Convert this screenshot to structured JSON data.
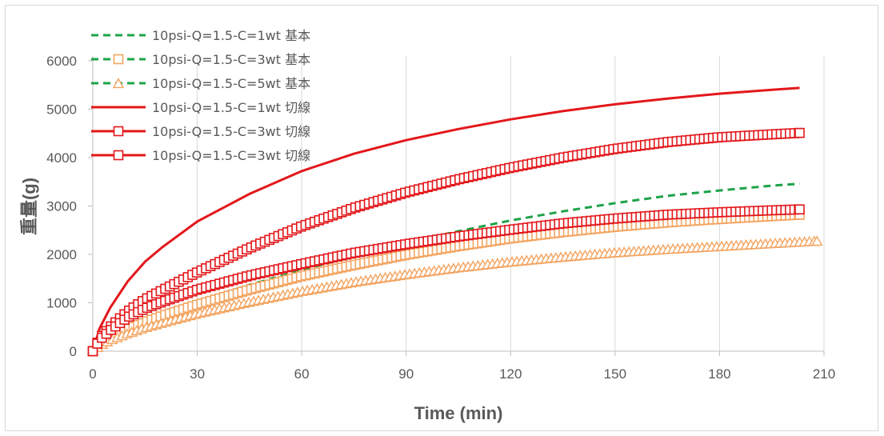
{
  "chart_data": {
    "type": "line",
    "xlabel": "Time (min)",
    "ylabel": "重量(g)",
    "xlim": [
      0,
      210
    ],
    "ylim": [
      0,
      6000
    ],
    "xticks": [
      0,
      30,
      60,
      90,
      120,
      150,
      180,
      210
    ],
    "yticks": [
      0,
      1000,
      2000,
      3000,
      4000,
      5000,
      6000
    ],
    "grid": "vertical",
    "legend_position": "top-left",
    "colors": {
      "green": "#1ea34a",
      "orange": "#f4a460",
      "red": "#e3171b",
      "axis": "#bfbfbf",
      "text": "#595959"
    },
    "series": [
      {
        "name": "10psi-Q=1.5-C=1wt 基本",
        "style": "dashed",
        "color": "#1ea34a",
        "marker": "none",
        "x": [
          0,
          2,
          5,
          10,
          15,
          20,
          30,
          45,
          60,
          75,
          90,
          105,
          120,
          135,
          150,
          165,
          180,
          195,
          203
        ],
        "y": [
          0,
          160,
          300,
          480,
          640,
          780,
          1030,
          1370,
          1680,
          1960,
          2240,
          2480,
          2700,
          2890,
          3060,
          3210,
          3320,
          3420,
          3460
        ]
      },
      {
        "name": "10psi-Q=1.5-C=3wt 基本",
        "style": "dashed",
        "color": "#1ea34a",
        "marker": "square",
        "marker_color": "#f4a460",
        "marker_every": 1,
        "x": [
          0,
          2,
          5,
          10,
          15,
          20,
          30,
          45,
          60,
          75,
          90,
          105,
          120,
          135,
          150,
          165,
          180,
          195,
          203
        ],
        "y": [
          0,
          150,
          280,
          450,
          600,
          730,
          960,
          1270,
          1550,
          1780,
          1990,
          2170,
          2330,
          2460,
          2570,
          2660,
          2730,
          2790,
          2820
        ]
      },
      {
        "name": "10psi-Q=1.5-C=5wt 基本",
        "style": "dashed",
        "color": "#1ea34a",
        "marker": "triangle",
        "marker_color": "#f4a460",
        "x": [
          0,
          2,
          5,
          10,
          15,
          20,
          30,
          45,
          60,
          75,
          90,
          105,
          120,
          135,
          150,
          165,
          180,
          195,
          208
        ],
        "y": [
          0,
          120,
          230,
          370,
          490,
          590,
          780,
          1020,
          1240,
          1430,
          1590,
          1730,
          1850,
          1950,
          2040,
          2110,
          2170,
          2230,
          2280
        ]
      },
      {
        "name": "10psi-Q=1.5-C=1wt 切線",
        "style": "solid",
        "color": "#e3171b",
        "marker": "none",
        "x": [
          0,
          2,
          5,
          10,
          15,
          20,
          30,
          45,
          60,
          75,
          90,
          105,
          120,
          135,
          150,
          165,
          180,
          195,
          203
        ],
        "y": [
          0,
          480,
          900,
          1440,
          1850,
          2150,
          2680,
          3250,
          3720,
          4080,
          4360,
          4590,
          4790,
          4960,
          5100,
          5220,
          5320,
          5400,
          5440
        ]
      },
      {
        "name": "10psi-Q=1.5-C=3wt 切線",
        "style": "solid",
        "color": "#e3171b",
        "marker": "square",
        "x": [
          0,
          2,
          5,
          10,
          15,
          20,
          30,
          45,
          60,
          75,
          90,
          105,
          120,
          135,
          150,
          165,
          180,
          195,
          203
        ],
        "y": [
          0,
          270,
          500,
          820,
          1070,
          1260,
          1630,
          2130,
          2580,
          2960,
          3280,
          3550,
          3790,
          4000,
          4180,
          4320,
          4420,
          4480,
          4510
        ]
      },
      {
        "name": "10psi-Q=1.5-C=3wt 切線",
        "style": "solid",
        "color": "#e3171b",
        "marker": "square",
        "x": [
          0,
          2,
          5,
          10,
          15,
          20,
          30,
          45,
          60,
          75,
          90,
          105,
          120,
          135,
          150,
          165,
          180,
          195,
          203
        ],
        "y": [
          0,
          240,
          430,
          700,
          880,
          1020,
          1270,
          1560,
          1800,
          2030,
          2210,
          2370,
          2510,
          2640,
          2740,
          2820,
          2870,
          2910,
          2930
        ]
      }
    ]
  }
}
